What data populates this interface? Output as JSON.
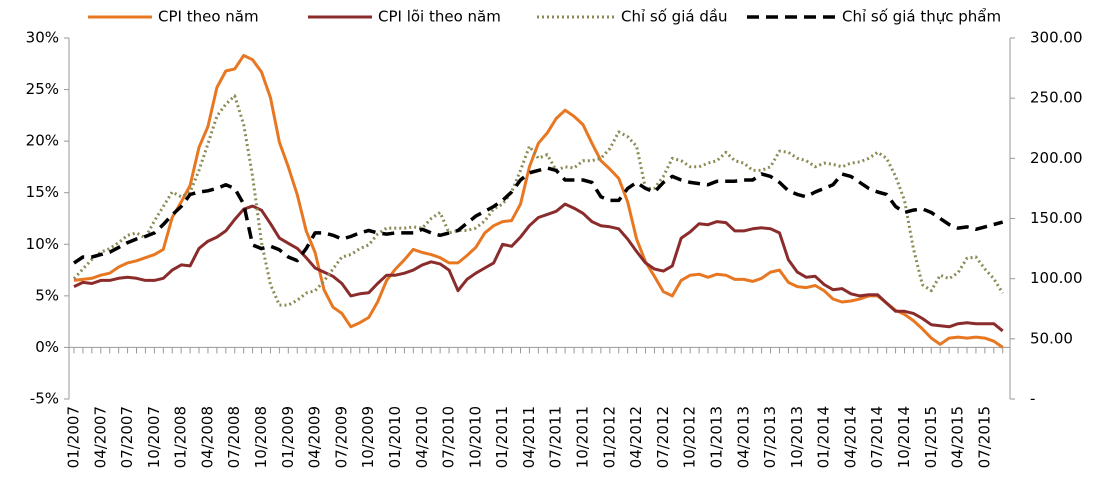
{
  "chart_data": {
    "type": "line",
    "categories": [
      "01/2007",
      null,
      null,
      "04/2007",
      null,
      null,
      "07/2007",
      null,
      null,
      "10/2007",
      null,
      null,
      "01/2008",
      null,
      null,
      "04/2008",
      null,
      null,
      "07/2008",
      null,
      null,
      "10/2008",
      null,
      null,
      "01/2009",
      null,
      null,
      "04/2009",
      null,
      null,
      "07/2009",
      null,
      null,
      "10/2009",
      null,
      null,
      "01/2010",
      null,
      null,
      "04/2010",
      null,
      null,
      "07/2010",
      null,
      null,
      "10/2010",
      null,
      null,
      "01/2011",
      null,
      null,
      "04/2011",
      null,
      null,
      "07/2011",
      null,
      null,
      "10/2011",
      null,
      null,
      "01/2012",
      null,
      null,
      "04/2012",
      null,
      null,
      "07/2012",
      null,
      null,
      "10/2012",
      null,
      null,
      "01/2013",
      null,
      null,
      "04/2013",
      null,
      null,
      "07/2013",
      null,
      null,
      "10/2013",
      null,
      null,
      "01/2014",
      null,
      null,
      "04/2014",
      null,
      null,
      "07/2014",
      null,
      null,
      "10/2014",
      null,
      null,
      "01/2015",
      null,
      null,
      "04/2015",
      null,
      null,
      "07/2015",
      null,
      null
    ],
    "series": [
      {
        "name": "CPI theo năm",
        "color": "#e87722",
        "style": "solid",
        "axis": "y",
        "values": [
          6.5,
          6.6,
          6.7,
          7.0,
          7.2,
          7.8,
          8.2,
          8.4,
          8.7,
          9.0,
          9.5,
          12.6,
          14.1,
          15.7,
          19.4,
          21.4,
          25.2,
          26.8,
          27.0,
          28.3,
          27.9,
          26.7,
          24.2,
          19.9,
          17.5,
          14.8,
          11.3,
          9.2,
          5.6,
          3.9,
          3.3,
          2.0,
          2.4,
          2.9,
          4.4,
          6.5,
          7.6,
          8.5,
          9.5,
          9.2,
          9.0,
          8.7,
          8.2,
          8.2,
          8.9,
          9.7,
          11.1,
          11.8,
          12.2,
          12.3,
          13.9,
          17.5,
          19.8,
          20.8,
          22.2,
          23.0,
          22.4,
          21.6,
          19.8,
          18.1,
          17.3,
          16.4,
          14.1,
          10.5,
          8.3,
          6.9,
          5.4,
          5.0,
          6.5,
          7.0,
          7.1,
          6.8,
          7.1,
          7.0,
          6.6,
          6.6,
          6.4,
          6.7,
          7.3,
          7.5,
          6.3,
          5.9,
          5.8,
          6.0,
          5.5,
          4.7,
          4.4,
          4.5,
          4.7,
          5.0,
          5.0,
          4.3,
          3.6,
          3.2,
          2.6,
          1.8,
          0.9,
          0.3,
          0.9,
          1.0,
          0.9,
          1.0,
          0.9,
          0.6,
          0.0
        ]
      },
      {
        "name": "CPI lõi theo năm",
        "color": "#8b2c2c",
        "style": "solid",
        "axis": "y",
        "values": [
          5.9,
          6.3,
          6.2,
          6.5,
          6.5,
          6.7,
          6.8,
          6.7,
          6.5,
          6.5,
          6.7,
          7.5,
          8.0,
          7.9,
          9.6,
          10.3,
          10.7,
          11.3,
          12.4,
          13.4,
          13.7,
          13.3,
          12.0,
          10.6,
          10.1,
          9.6,
          8.7,
          7.7,
          7.3,
          6.9,
          6.2,
          5.0,
          5.2,
          5.3,
          6.2,
          7.0,
          7.0,
          7.2,
          7.5,
          8.0,
          8.3,
          8.1,
          7.5,
          5.5,
          6.6,
          7.2,
          7.7,
          8.2,
          10.0,
          9.8,
          10.7,
          11.8,
          12.6,
          12.9,
          13.2,
          13.9,
          13.5,
          13.0,
          12.2,
          11.8,
          11.7,
          11.5,
          10.5,
          9.3,
          8.2,
          7.6,
          7.4,
          7.9,
          10.6,
          11.2,
          12.0,
          11.9,
          12.2,
          12.1,
          11.3,
          11.3,
          11.5,
          11.6,
          11.5,
          11.1,
          8.5,
          7.3,
          6.8,
          6.9,
          6.1,
          5.6,
          5.7,
          5.2,
          5.0,
          5.1,
          5.1,
          4.3,
          3.5,
          3.5,
          3.3,
          2.8,
          2.2,
          2.1,
          2.0,
          2.3,
          2.4,
          2.3,
          2.3,
          2.3,
          1.6
        ]
      },
      {
        "name": "Chỉ số giá dầu",
        "color": "#8c8a55",
        "style": "dotted",
        "axis": "y2",
        "values": [
          100,
          108,
          116,
          122,
          125,
          130,
          136,
          138,
          134,
          148,
          160,
          172,
          168,
          172,
          190,
          212,
          235,
          245,
          252,
          228,
          185,
          130,
          95,
          78,
          78,
          82,
          88,
          90,
          98,
          108,
          118,
          120,
          125,
          128,
          137,
          142,
          142,
          142,
          143,
          142,
          150,
          155,
          138,
          140,
          140,
          142,
          148,
          158,
          162,
          172,
          190,
          210,
          200,
          203,
          190,
          193,
          192,
          198,
          198,
          200,
          208,
          222,
          218,
          210,
          175,
          175,
          185,
          200,
          198,
          193,
          193,
          196,
          198,
          205,
          198,
          196,
          190,
          190,
          193,
          206,
          205,
          200,
          198,
          193,
          196,
          195,
          193,
          196,
          197,
          200,
          205,
          200,
          185,
          165,
          125,
          95,
          90,
          103,
          100,
          105,
          117,
          118,
          108,
          100,
          88
        ]
      },
      {
        "name": "Chỉ số giá thực phẩm",
        "color": "#000000",
        "style": "dashed",
        "axis": "y2",
        "values": [
          113,
          118,
          118,
          120,
          122,
          126,
          130,
          133,
          135,
          138,
          145,
          153,
          160,
          170,
          172,
          173,
          175,
          178,
          175,
          162,
          128,
          125,
          127,
          124,
          118,
          115,
          125,
          138,
          138,
          136,
          133,
          135,
          138,
          140,
          138,
          137,
          138,
          138,
          138,
          141,
          138,
          136,
          138,
          140,
          146,
          152,
          156,
          160,
          165,
          172,
          182,
          188,
          190,
          192,
          190,
          182,
          182,
          182,
          180,
          168,
          165,
          165,
          175,
          180,
          175,
          172,
          180,
          185,
          182,
          180,
          179,
          178,
          181,
          181,
          181,
          182,
          182,
          187,
          185,
          180,
          173,
          170,
          168,
          172,
          175,
          178,
          187,
          185,
          180,
          175,
          172,
          170,
          160,
          155,
          157,
          158,
          155,
          150,
          145,
          142,
          143,
          141,
          143,
          145,
          147
        ]
      }
    ],
    "ylim": [
      -5,
      30
    ],
    "yticks": [
      {
        "value": -5,
        "label": "-5%"
      },
      {
        "value": 0,
        "label": "0%"
      },
      {
        "value": 5,
        "label": "5%"
      },
      {
        "value": 10,
        "label": "10%"
      },
      {
        "value": 15,
        "label": "15%"
      },
      {
        "value": 20,
        "label": "20%"
      },
      {
        "value": 25,
        "label": "25%"
      },
      {
        "value": 30,
        "label": "30%"
      }
    ],
    "y2lim": [
      0,
      300
    ],
    "y2ticks": [
      {
        "value": 0,
        "label": "-"
      },
      {
        "value": 50,
        "label": "50.00"
      },
      {
        "value": 100,
        "label": "100.00"
      },
      {
        "value": 150,
        "label": "150.00"
      },
      {
        "value": 200,
        "label": "200.00"
      },
      {
        "value": 250,
        "label": "250.00"
      },
      {
        "value": 300,
        "label": "300.00"
      }
    ],
    "legend": "top"
  }
}
